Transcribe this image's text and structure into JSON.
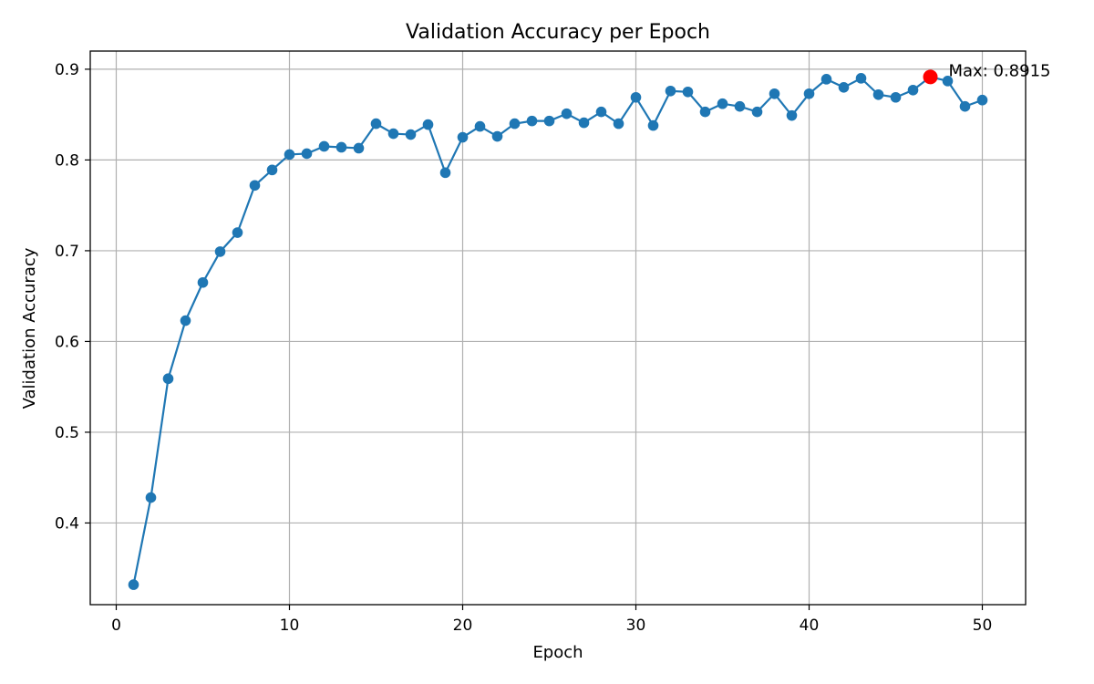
{
  "colors": {
    "series": "#1f77b4",
    "highlight": "#ff0000",
    "grid": "#b0b0b0"
  },
  "chart_data": {
    "type": "line",
    "title": "Validation Accuracy per Epoch",
    "xlabel": "Epoch",
    "ylabel": "Validation Accuracy",
    "xlim": [
      -1.5,
      52.5
    ],
    "ylim": [
      0.31,
      0.92
    ],
    "xticks": [
      0,
      10,
      20,
      30,
      40,
      50
    ],
    "xtick_labels": [
      "0",
      "10",
      "20",
      "30",
      "40",
      "50"
    ],
    "yticks": [
      0.4,
      0.5,
      0.6,
      0.7,
      0.8,
      0.9
    ],
    "ytick_labels": [
      "0.4",
      "0.5",
      "0.6",
      "0.7",
      "0.8",
      "0.9"
    ],
    "grid": true,
    "marker": "circle",
    "series": [
      {
        "x": [
          1,
          2,
          3,
          4,
          5,
          6,
          7,
          8,
          9,
          10,
          11,
          12,
          13,
          14,
          15,
          16,
          17,
          18,
          19,
          20,
          21,
          22,
          23,
          24,
          25,
          26,
          27,
          28,
          29,
          30,
          31,
          32,
          33,
          34,
          35,
          36,
          37,
          38,
          39,
          40,
          41,
          42,
          43,
          44,
          45,
          46,
          47,
          48,
          49,
          50
        ],
        "values": [
          0.332,
          0.428,
          0.559,
          0.623,
          0.665,
          0.699,
          0.72,
          0.772,
          0.789,
          0.806,
          0.807,
          0.815,
          0.814,
          0.813,
          0.84,
          0.829,
          0.828,
          0.839,
          0.786,
          0.825,
          0.837,
          0.826,
          0.84,
          0.843,
          0.843,
          0.851,
          0.841,
          0.853,
          0.84,
          0.869,
          0.838,
          0.876,
          0.875,
          0.853,
          0.862,
          0.859,
          0.853,
          0.873,
          0.849,
          0.873,
          0.889,
          0.88,
          0.89,
          0.872,
          0.869,
          0.877,
          0.8915,
          0.887,
          0.859,
          0.866
        ]
      }
    ],
    "highlight_point": {
      "x": 47,
      "y": 0.8915
    },
    "annotation": "Max: 0.8915"
  }
}
